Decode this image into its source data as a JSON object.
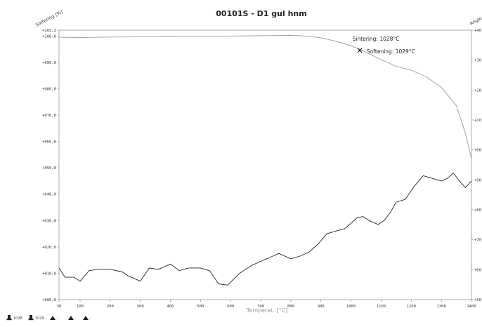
{
  "chart_data": {
    "type": "line",
    "title": "00101S - D1 gul hnm",
    "ylabel_left": "Sintering [%]",
    "ylabel_right": "Angle",
    "xlabel": "Temperat. [°C]",
    "x_ticks": [
      "30",
      "100",
      "200",
      "300",
      "400",
      "500",
      "600",
      "700",
      "800",
      "900",
      "1000",
      "1100",
      "1200",
      "1300",
      "1400"
    ],
    "y_left_ticks": [
      "+000,0",
      "+010,0",
      "+020,0",
      "+030,0",
      "+040,0",
      "+050,0",
      "+060,0",
      "+070,0",
      "+080,0",
      "+090,0",
      "+100,0",
      "+102,2"
    ],
    "y_right_ticks": [
      "+40",
      "+30",
      "+20",
      "+10",
      "+00",
      "+90",
      "+80",
      "+70",
      "+60",
      "+50"
    ],
    "xlim": [
      30,
      1400
    ],
    "ylim": [
      0,
      102.2
    ],
    "series": [
      {
        "color": "#999999",
        "x": [
          30,
          100,
          200,
          300,
          400,
          500,
          600,
          700,
          800,
          850,
          900,
          950,
          1000,
          1028,
          1050,
          1100,
          1150,
          1200,
          1250,
          1300,
          1350,
          1380,
          1400
        ],
        "y": [
          99.5,
          99.4,
          99.6,
          99.7,
          99.8,
          99.9,
          100.0,
          100.1,
          100.2,
          100.0,
          99.3,
          98.0,
          96.3,
          95.0,
          93.8,
          91.0,
          88.5,
          87.0,
          84.5,
          80.5,
          73.5,
          63.0,
          53.5
        ]
      },
      {
        "color": "#222222",
        "x": [
          30,
          50,
          80,
          100,
          130,
          160,
          200,
          240,
          260,
          300,
          330,
          360,
          400,
          430,
          460,
          500,
          530,
          560,
          590,
          630,
          670,
          700,
          720,
          740,
          760,
          780,
          800,
          830,
          860,
          890,
          920,
          950,
          980,
          1000,
          1020,
          1040,
          1060,
          1090,
          1110,
          1130,
          1150,
          1180,
          1210,
          1240,
          1270,
          1300,
          1320,
          1340,
          1360,
          1380,
          1400
        ],
        "y": [
          12,
          8.5,
          8.5,
          7,
          11,
          11.5,
          11.5,
          10.5,
          9,
          7,
          12,
          11.5,
          13.5,
          11,
          12,
          12,
          11,
          6,
          5.5,
          10,
          13,
          14.5,
          15.5,
          16.5,
          17.5,
          16.5,
          15.5,
          16.5,
          18,
          21,
          25,
          26,
          27,
          29,
          31,
          31.5,
          30,
          28.5,
          30,
          33,
          37,
          38,
          43,
          47,
          46,
          45,
          46,
          48,
          45,
          42.5,
          45
        ]
      }
    ],
    "annotations": [
      {
        "text": "Sintering: 1028°C",
        "x": 1028,
        "y": 95.0
      },
      {
        "text": "Softening: 1029°C",
        "x": 1029,
        "y": 94.8
      }
    ],
    "legend": [
      "1028",
      "1029",
      "-",
      "-",
      "-"
    ],
    "grid": false
  }
}
